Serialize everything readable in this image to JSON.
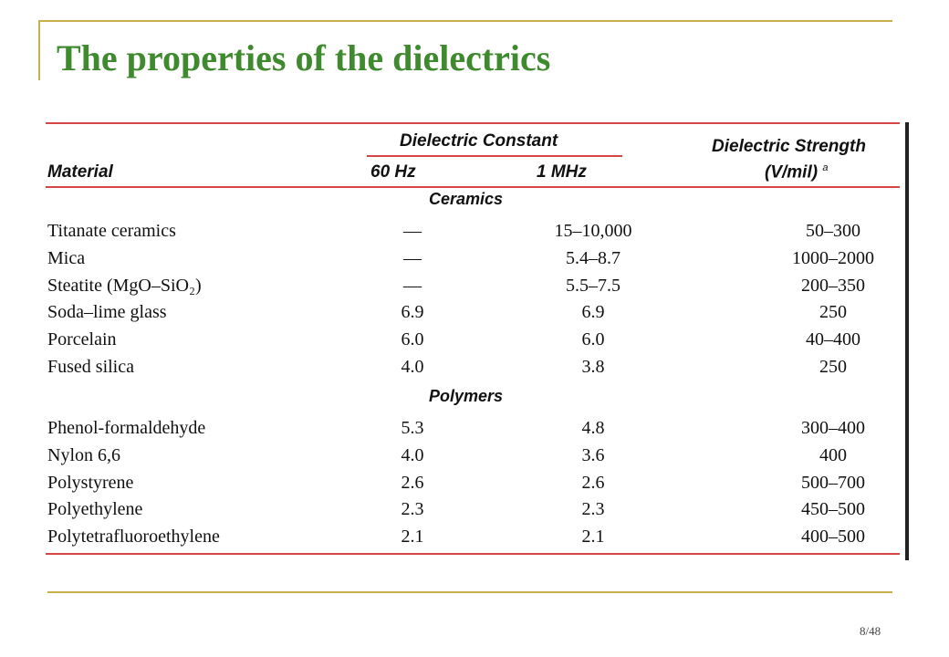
{
  "slide": {
    "title": "The properties of the dielectrics",
    "page_number": "8/48"
  },
  "table": {
    "headers": {
      "material": "Material",
      "dielectric_constant": "Dielectric Constant",
      "hz60": "60 Hz",
      "mhz1": "1 MHz",
      "dielectric_strength": "Dielectric Strength",
      "strength_unit": "(V/mil)",
      "strength_footnote": "a"
    },
    "sections": [
      {
        "name": "Ceramics",
        "rows": [
          {
            "material": "Titanate ceramics",
            "hz60": "—",
            "mhz1": "15–10,000",
            "strength": "50–300"
          },
          {
            "material": "Mica",
            "hz60": "—",
            "mhz1": "5.4–8.7",
            "strength": "1000–2000"
          },
          {
            "material": "Steatite (MgO–SiO₂)",
            "hz60": "—",
            "mhz1": "5.5–7.5",
            "strength": "200–350"
          },
          {
            "material": "Soda–lime glass",
            "hz60": "6.9",
            "mhz1": "6.9",
            "strength": "250"
          },
          {
            "material": "Porcelain",
            "hz60": "6.0",
            "mhz1": "6.0",
            "strength": "40–400"
          },
          {
            "material": "Fused silica",
            "hz60": "4.0",
            "mhz1": "3.8",
            "strength": "250"
          }
        ]
      },
      {
        "name": "Polymers",
        "rows": [
          {
            "material": "Phenol-formaldehyde",
            "hz60": "5.3",
            "mhz1": "4.8",
            "strength": "300–400"
          },
          {
            "material": "Nylon 6,6",
            "hz60": "4.0",
            "mhz1": "3.6",
            "strength": "400"
          },
          {
            "material": "Polystyrene",
            "hz60": "2.6",
            "mhz1": "2.6",
            "strength": "500–700"
          },
          {
            "material": "Polyethylene",
            "hz60": "2.3",
            "mhz1": "2.3",
            "strength": "450–500"
          },
          {
            "material": "Polytetrafluoroethylene",
            "hz60": "2.1",
            "mhz1": "2.1",
            "strength": "400–500"
          }
        ]
      }
    ]
  }
}
